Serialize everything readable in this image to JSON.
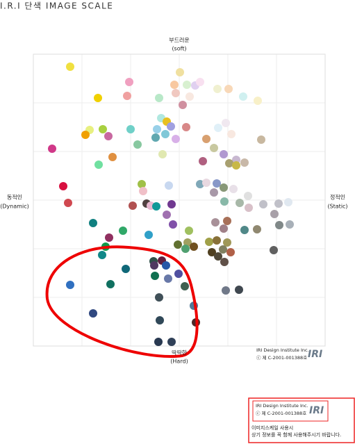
{
  "chart_data": {
    "type": "scatter",
    "title": "I.R.I 단색 IMAGE SCALE",
    "axis_labels": {
      "top": [
        "부드러운",
        "(soft)"
      ],
      "bottom": [
        "딱딱한",
        "(Hard)"
      ],
      "left": [
        "동적인",
        "(Dynamic)"
      ],
      "right": [
        "정적인",
        "(Static)"
      ]
    },
    "credits": [
      "IRI Design Institute Inc.",
      "ⓒ 제 C-2001-001388호"
    ],
    "logo": "IRI",
    "notice": {
      "credits": [
        "IRI Design Institute Inc.",
        "ⓒ 제 C-2001-001388호"
      ],
      "lines": [
        "이미지스케일 사용시",
        "상기 정보를 꼭 함께 사용해주시기 바랍니다."
      ]
    },
    "xlim": [
      -210,
      210
    ],
    "ylim": [
      -210,
      210
    ],
    "xticks": [
      -210,
      -140,
      -70,
      0,
      70,
      140,
      210
    ],
    "yticks": [
      -210,
      -140,
      -70,
      0,
      70,
      140,
      210
    ],
    "grid": true,
    "x": [
      -157,
      -72,
      1,
      -7,
      11,
      23,
      30,
      55,
      71,
      -117,
      -75,
      -29,
      -5,
      15,
      5,
      92,
      113,
      -26,
      -18,
      -129,
      -110,
      -135,
      -102,
      -70,
      -32,
      -12,
      10,
      -20,
      -34,
      -5,
      56,
      67,
      75,
      39,
      -60,
      -183,
      50,
      118,
      -24,
      -96,
      -116,
      64,
      82,
      72,
      94,
      82,
      34,
      -167,
      -54,
      -52,
      -15,
      30,
      39,
      54,
      64,
      78,
      50,
      99,
      -160,
      -67,
      -47,
      -41,
      -33,
      -11,
      65,
      87,
      100,
      121,
      143,
      157,
      -18,
      137,
      -124,
      -9,
      52,
      69,
      -81,
      -44,
      14,
      64,
      94,
      112,
      144,
      159,
      -101,
      -106,
      -2,
      12,
      21,
      43,
      54,
      69,
      9,
      63,
      47,
      74,
      136,
      -111,
      56,
      65,
      -37,
      -25,
      -19,
      -36,
      -77,
      -1,
      -35,
      -16,
      -157,
      -99,
      8,
      67,
      86,
      -29,
      21,
      -124,
      -28,
      24,
      -30,
      -11
    ],
    "values": [
      192,
      170,
      184,
      166,
      166,
      165,
      170,
      160,
      160,
      147,
      150,
      147,
      154,
      149,
      137,
      149,
      143,
      118,
      113,
      101,
      102,
      94,
      92,
      102,
      102,
      106,
      105,
      95,
      90,
      88,
      104,
      111,
      95,
      88,
      80,
      74,
      75,
      87,
      66,
      62,
      51,
      66,
      58,
      53,
      54,
      50,
      56,
      20,
      23,
      13,
      21,
      23,
      25,
      24,
      18,
      16,
      11,
      6,
      -4,
      -8,
      -5,
      -8,
      -9,
      -6,
      -2,
      -4,
      -11,
      -6,
      -5,
      -3,
      -21,
      -20,
      -33,
      -35,
      -32,
      -30,
      -44,
      -50,
      -44,
      -41,
      -43,
      -42,
      -36,
      -35,
      -54,
      -67,
      -64,
      -61,
      -67,
      -60,
      -58,
      -61,
      -70,
      -71,
      -75,
      -75,
      -72,
      -79,
      -81,
      -89,
      -88,
      -87,
      -94,
      -94,
      -99,
      -106,
      -109,
      -113,
      -122,
      -121,
      -124,
      -130,
      -129,
      -140,
      -152,
      -163,
      -173,
      -176,
      -204,
      -204
    ],
    "colors": [
      "#f0e040",
      "#f0a0c0",
      "#f0e0a0",
      "#f8c8a0",
      "#d8f0d0",
      "#e0d0f0",
      "#f8e0f0",
      "#f0f0d0",
      "#f8d8b8",
      "#f0d000",
      "#f0a0a0",
      "#b8e8c8",
      "#f0c8c0",
      "#f8e8e0",
      "#d090a0",
      "#d0f0f0",
      "#f8f0c8",
      "#b0e8e0",
      "#e8c020",
      "#e8f080",
      "#a8d040",
      "#f0a000",
      "#c868a0",
      "#70d0c8",
      "#98d0e8",
      "#a0a0e0",
      "#d88888",
      "#80c8d8",
      "#60a8b0",
      "#d8b0e8",
      "#e0f0f8",
      "#f0e8f0",
      "#f8e8e0",
      "#d8a070",
      "#88c8a0",
      "#d03888",
      "#c8c8a0",
      "#c8b8a0",
      "#e0e8b0",
      "#e09040",
      "#70e0a0",
      "#b098d0",
      "#c8b8d0",
      "#a8a070",
      "#c8b8a8",
      "#c8b848",
      "#b06080",
      "#d81040",
      "#a0c048",
      "#f0c0c8",
      "#c8d8f0",
      "#80a8b8",
      "#e8d8e0",
      "#8898c8",
      "#889878",
      "#e8e0e8",
      "#a898a8",
      "#e0e0e0",
      "#d04850",
      "#b05050",
      "#504040",
      "#e8b8d0",
      "#109898",
      "#703890",
      "#88b8a8",
      "#a8b8a8",
      "#d8c0c8",
      "#c0c0c8",
      "#c0c0c8",
      "#e0e8f0",
      "#a070b0",
      "#a8a0a8",
      "#108080",
      "#8050a8",
      "#a89098",
      "#a87058",
      "#30a868",
      "#30a0c8",
      "#a0c060",
      "#a08088",
      "#508888",
      "#908870",
      "#808888",
      "#a8b0b8",
      "#903060",
      "#109848",
      "#607030",
      "#a0a060",
      "#705020",
      "#a0a048",
      "#887038",
      "#a09858",
      "#50a070",
      "#808060",
      "#504020",
      "#b06048",
      "#606060",
      "#108888",
      "#504838",
      "#605048",
      "#305048",
      "#602040",
      "#2858a8",
      "#503860",
      "#106878",
      "#5050a0",
      "#107050",
      "#6878a8",
      "#3070c0",
      "#107060",
      "#406050",
      "#707888",
      "#404850",
      "#405058",
      "#507898",
      "#304880",
      "#304858",
      "#502828",
      "#283850",
      "#304058"
    ]
  }
}
